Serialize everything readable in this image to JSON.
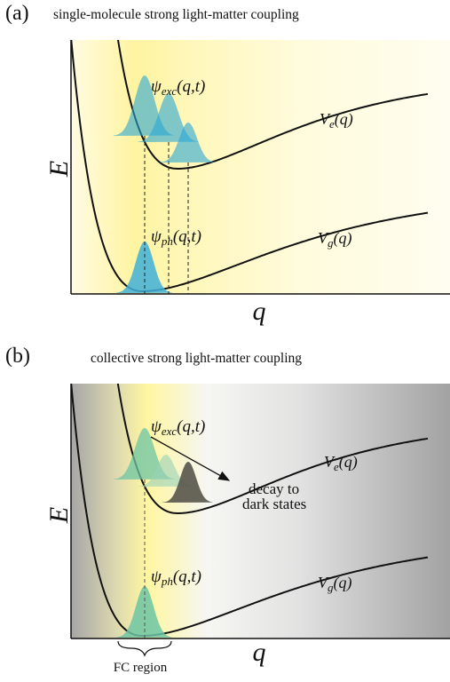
{
  "panel_a": {
    "label": "(a)",
    "title": "single-molecule strong light-matter coupling",
    "y_axis": "E",
    "x_axis": "q",
    "psi_exc": {
      "symbol": "ψ",
      "subscript": "exc",
      "argument": "(q,t)"
    },
    "V_e": {
      "symbol": "V",
      "subscript": "e",
      "argument": "(q)"
    },
    "psi_ph": {
      "symbol": "ψ",
      "subscript": "ph",
      "argument": "(q,t)"
    },
    "V_g": {
      "symbol": "V",
      "subscript": "g",
      "argument": "(q)"
    }
  },
  "panel_b": {
    "label": "(b)",
    "title": "collective strong light-matter coupling",
    "y_axis": "E",
    "x_axis": "q",
    "psi_exc": {
      "symbol": "ψ",
      "subscript": "exc",
      "argument": "(q,t)"
    },
    "V_e": {
      "symbol": "V",
      "subscript": "e",
      "argument": "(q)"
    },
    "psi_ph": {
      "symbol": "ψ",
      "subscript": "ph",
      "argument": "(q,t)"
    },
    "V_g": {
      "symbol": "V",
      "subscript": "g",
      "argument": "(q)"
    },
    "decay_line1": "decay to",
    "decay_line2": "dark states",
    "fc_region": "FC region"
  }
}
